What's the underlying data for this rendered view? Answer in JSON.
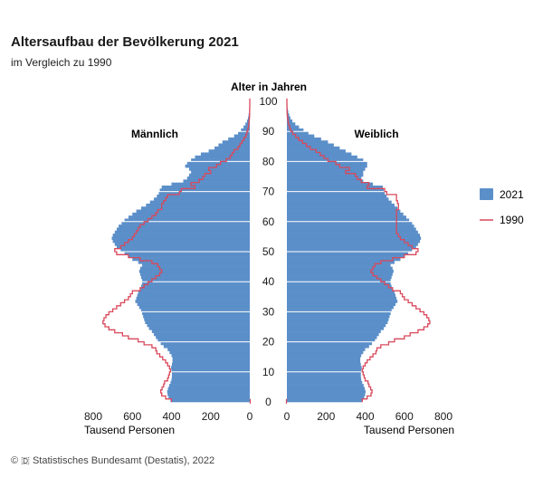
{
  "chart_data": {
    "type": "bar",
    "title": "Altersaufbau der Bevölkerung 2021",
    "subtitle": "im Vergleich zu 1990",
    "age_axis_label": "Alter in Jahren",
    "xlabel": "Tausend Personen",
    "left_label": "Männlich",
    "right_label": "Weiblich",
    "age_ticks": [
      0,
      10,
      20,
      30,
      40,
      50,
      60,
      70,
      80,
      90,
      100
    ],
    "x_ticks": [
      0,
      200,
      400,
      600,
      800
    ],
    "x_tick_labels": [
      "0",
      "200",
      "400",
      "600",
      "800"
    ],
    "xlim": [
      0,
      800
    ],
    "ylim": [
      0,
      100
    ],
    "ages": [
      0,
      1,
      2,
      3,
      4,
      5,
      6,
      7,
      8,
      9,
      10,
      11,
      12,
      13,
      14,
      15,
      16,
      17,
      18,
      19,
      20,
      21,
      22,
      23,
      24,
      25,
      26,
      27,
      28,
      29,
      30,
      31,
      32,
      33,
      34,
      35,
      36,
      37,
      38,
      39,
      40,
      41,
      42,
      43,
      44,
      45,
      46,
      47,
      48,
      49,
      50,
      51,
      52,
      53,
      54,
      55,
      56,
      57,
      58,
      59,
      60,
      61,
      62,
      63,
      64,
      65,
      66,
      67,
      68,
      69,
      70,
      71,
      72,
      73,
      74,
      75,
      76,
      77,
      78,
      79,
      80,
      81,
      82,
      83,
      84,
      85,
      86,
      87,
      88,
      89,
      90,
      91,
      92,
      93,
      94,
      95,
      96,
      97,
      98,
      99,
      100
    ],
    "series": [
      {
        "name": "2021",
        "color": "#5b8fc9",
        "male": [
          405,
          415,
          420,
          422,
          418,
          412,
          405,
          400,
          398,
          398,
          400,
          402,
          398,
          395,
          395,
          400,
          410,
          420,
          440,
          455,
          470,
          480,
          490,
          500,
          515,
          525,
          535,
          540,
          545,
          550,
          555,
          565,
          575,
          585,
          580,
          575,
          570,
          560,
          555,
          550,
          550,
          555,
          560,
          565,
          560,
          550,
          570,
          600,
          620,
          640,
          660,
          680,
          690,
          700,
          705,
          700,
          690,
          680,
          670,
          655,
          640,
          620,
          600,
          580,
          555,
          530,
          510,
          490,
          475,
          465,
          460,
          450,
          400,
          340,
          320,
          310,
          300,
          310,
          330,
          320,
          300,
          280,
          250,
          210,
          180,
          160,
          140,
          110,
          80,
          60,
          45,
          32,
          22,
          14,
          9,
          6,
          3,
          2,
          1,
          0.5,
          0
        ],
        "female": [
          385,
          395,
          400,
          402,
          398,
          392,
          385,
          380,
          378,
          378,
          380,
          382,
          378,
          375,
          375,
          380,
          390,
          400,
          420,
          435,
          450,
          460,
          470,
          480,
          495,
          505,
          515,
          520,
          525,
          530,
          535,
          545,
          555,
          565,
          560,
          555,
          550,
          540,
          535,
          530,
          530,
          535,
          540,
          545,
          540,
          530,
          550,
          580,
          600,
          620,
          640,
          660,
          670,
          680,
          685,
          680,
          670,
          660,
          650,
          640,
          625,
          610,
          595,
          580,
          565,
          550,
          535,
          520,
          510,
          500,
          495,
          490,
          440,
          390,
          380,
          390,
          390,
          400,
          410,
          410,
          390,
          360,
          330,
          300,
          270,
          240,
          210,
          175,
          140,
          110,
          85,
          62,
          43,
          28,
          18,
          12,
          7,
          4,
          2,
          1,
          0
        ]
      },
      {
        "name": "1990",
        "color": "#d9485b",
        "male": [
          400,
          430,
          450,
          455,
          448,
          440,
          435,
          420,
          415,
          410,
          405,
          410,
          420,
          430,
          445,
          460,
          475,
          480,
          500,
          540,
          570,
          620,
          650,
          690,
          720,
          740,
          750,
          745,
          735,
          720,
          700,
          680,
          660,
          640,
          620,
          610,
          600,
          560,
          540,
          520,
          500,
          480,
          460,
          450,
          460,
          470,
          500,
          560,
          620,
          680,
          690,
          660,
          640,
          620,
          600,
          590,
          580,
          570,
          560,
          540,
          520,
          500,
          480,
          470,
          450,
          450,
          440,
          430,
          420,
          360,
          350,
          280,
          300,
          260,
          240,
          230,
          200,
          210,
          170,
          150,
          120,
          100,
          90,
          80,
          60,
          50,
          40,
          30,
          20,
          15,
          10,
          7,
          5,
          3,
          2,
          1,
          1,
          0.5,
          0.2,
          0.1,
          0
        ],
        "female": [
          385,
          410,
          430,
          435,
          428,
          420,
          415,
          400,
          395,
          390,
          385,
          390,
          400,
          410,
          425,
          440,
          455,
          460,
          480,
          520,
          550,
          600,
          630,
          670,
          700,
          720,
          730,
          725,
          715,
          700,
          680,
          660,
          640,
          620,
          600,
          590,
          580,
          540,
          520,
          500,
          480,
          460,
          440,
          430,
          440,
          450,
          480,
          540,
          600,
          660,
          670,
          640,
          620,
          600,
          580,
          570,
          560,
          560,
          560,
          560,
          560,
          560,
          560,
          560,
          570,
          570,
          565,
          560,
          560,
          510,
          500,
          410,
          420,
          380,
          360,
          350,
          300,
          320,
          270,
          250,
          210,
          190,
          170,
          150,
          120,
          100,
          80,
          60,
          45,
          30,
          20,
          14,
          9,
          6,
          4,
          2,
          1,
          0.5,
          0.3,
          0.1,
          0
        ]
      }
    ],
    "legend": [
      {
        "label": "2021",
        "color": "#5b8fc9",
        "kind": "box"
      },
      {
        "label": "1990",
        "color": "#d9485b",
        "kind": "line"
      }
    ],
    "legend_position": "right",
    "grid": true
  },
  "footer": {
    "text": "© 🇩 Statistisches Bundesamt (Destatis), 2022"
  }
}
